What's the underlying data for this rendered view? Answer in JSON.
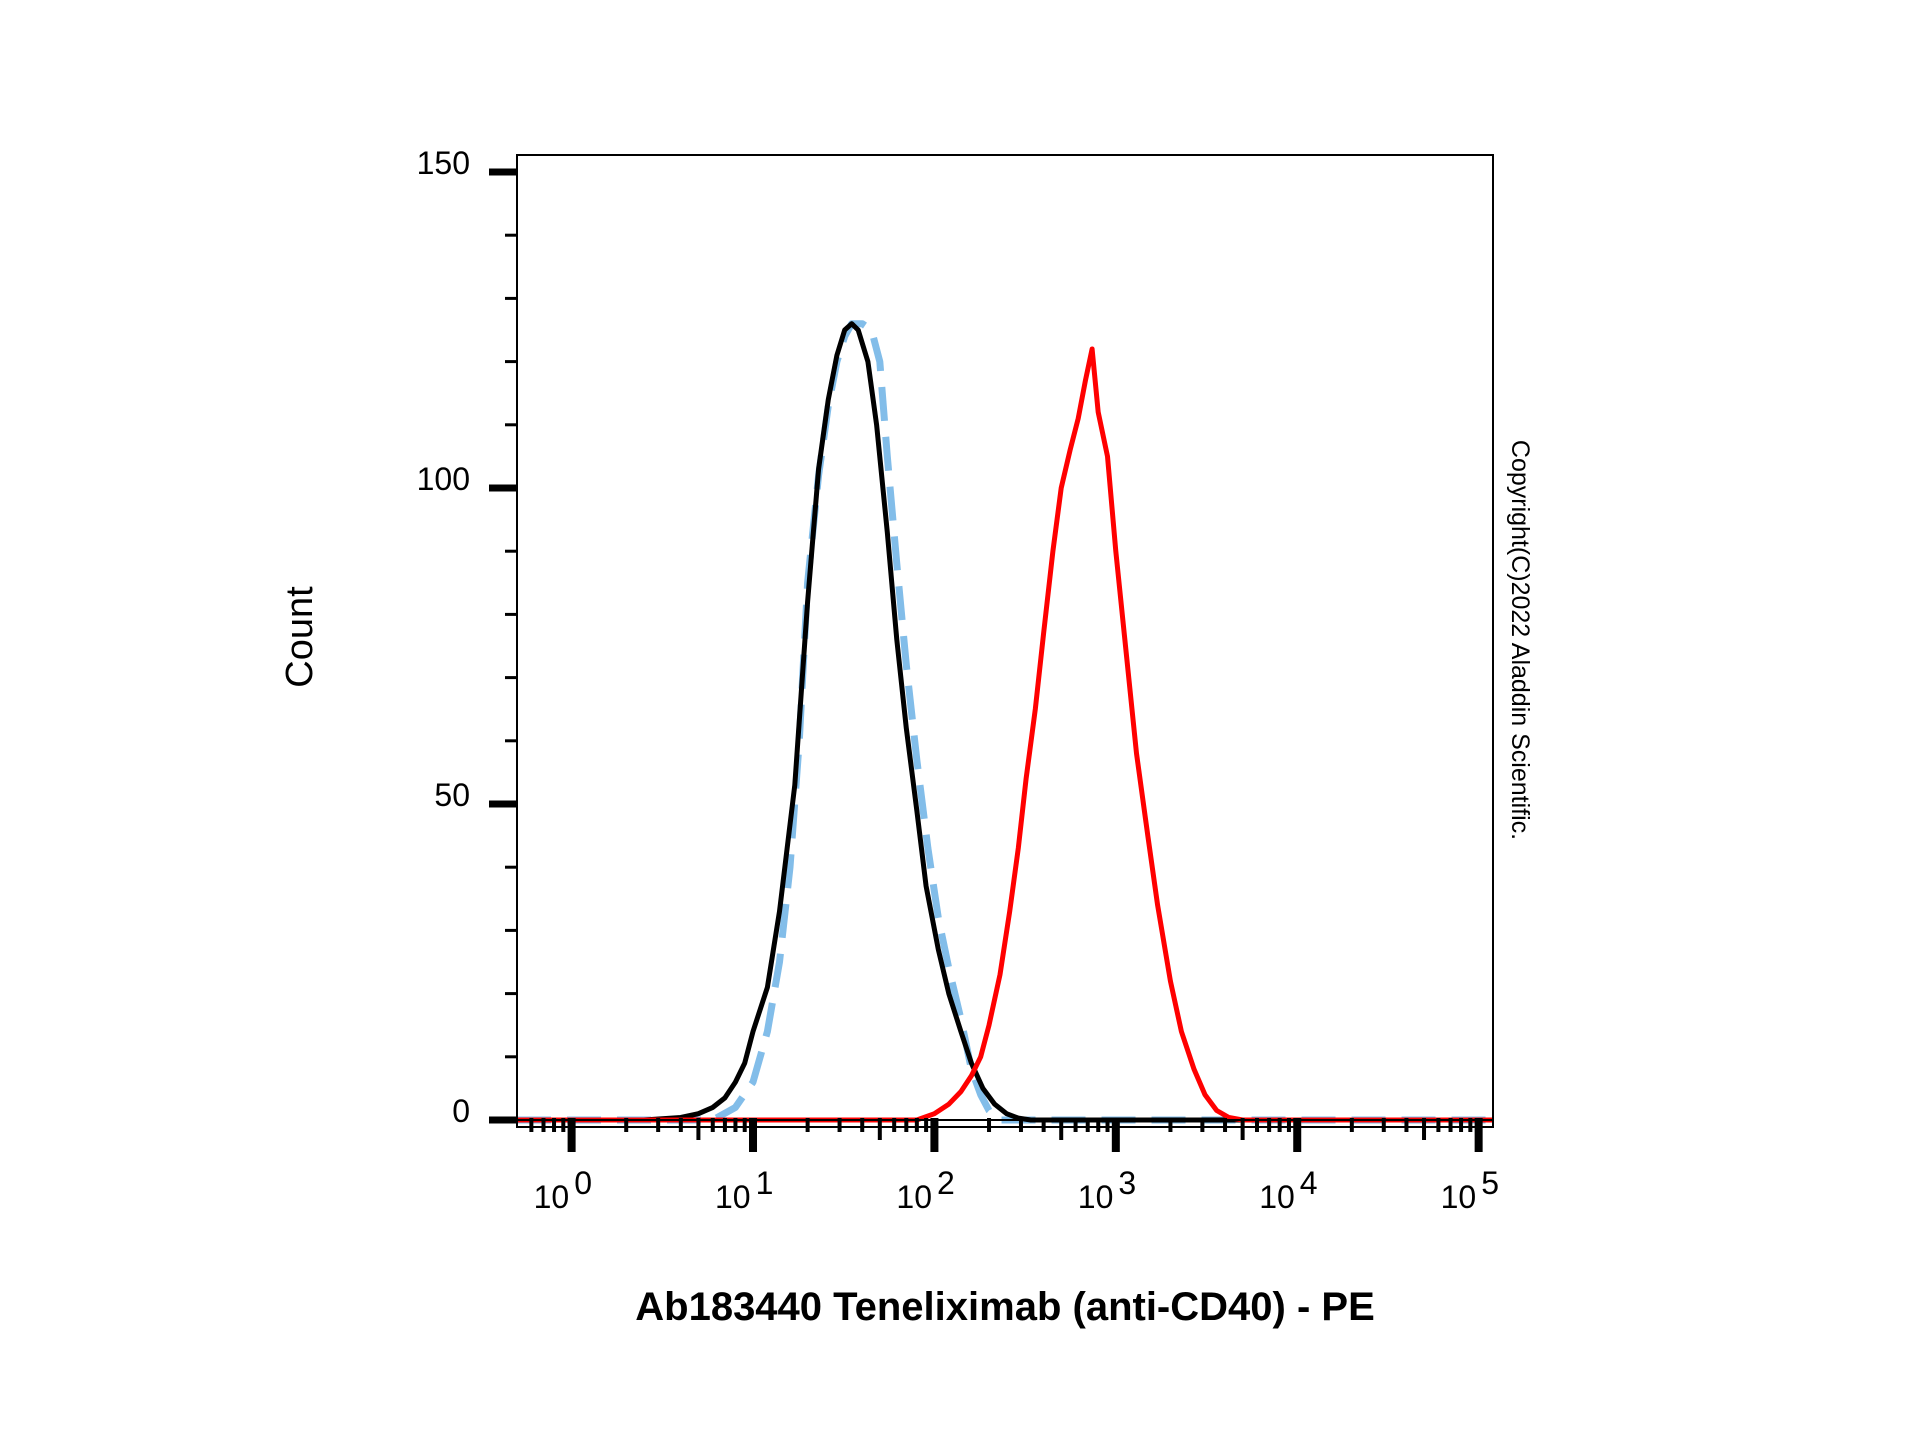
{
  "chart_data": {
    "type": "line",
    "title": "",
    "xlabel": "Ab183440 Teneliximab (anti-CD40) - PE",
    "ylabel": "Count",
    "x_scale": "log",
    "xlim": [
      0.5,
      120000
    ],
    "ylim": [
      0,
      150
    ],
    "grid": false,
    "legend": "none",
    "x_ticks": [
      {
        "value": 1,
        "base": "10",
        "exp": "0"
      },
      {
        "value": 10,
        "base": "10",
        "exp": "1"
      },
      {
        "value": 100,
        "base": "10",
        "exp": "2"
      },
      {
        "value": 1000,
        "base": "10",
        "exp": "3"
      },
      {
        "value": 10000,
        "base": "10",
        "exp": "4"
      },
      {
        "value": 100000,
        "base": "10",
        "exp": "5"
      }
    ],
    "y_ticks": [
      {
        "value": 0,
        "label": "0"
      },
      {
        "value": 50,
        "label": "50"
      },
      {
        "value": 100,
        "label": "100"
      },
      {
        "value": 150,
        "label": "150"
      }
    ],
    "series": [
      {
        "color": "#000000",
        "dash": false,
        "x": [
          0.5,
          2.5,
          4.0,
          5.0,
          6.0,
          7.0,
          8.0,
          9.0,
          10.0,
          12.0,
          14.0,
          17.0,
          20.0,
          23.0,
          26.0,
          29.0,
          32.0,
          35.0,
          38.0,
          43.0,
          48.0,
          55.0,
          62.0,
          70.0,
          80.0,
          90.0,
          105.0,
          120.0,
          140.0,
          160.0,
          185.0,
          215.0,
          250.0,
          290.0,
          340.0,
          120000
        ],
        "y": [
          0,
          0,
          0.4,
          1,
          2,
          3.5,
          6,
          9,
          14,
          21,
          33,
          53,
          82,
          103,
          114,
          121,
          125,
          126,
          125,
          120,
          110,
          93,
          76,
          62,
          49,
          37,
          27,
          20,
          14,
          9,
          5,
          2.5,
          1,
          0.3,
          0,
          0
        ]
      },
      {
        "color": "#82bde9",
        "dash": true,
        "x": [
          0.5,
          6.0,
          8.0,
          10.0,
          12.0,
          14.0,
          16.0,
          18.0,
          20.0,
          23.0,
          26.0,
          29.0,
          32.0,
          35.0,
          40.0,
          45.0,
          50.0,
          55.0,
          62.0,
          70.0,
          80.0,
          92.0,
          105.0,
          120.0,
          140.0,
          160.0,
          180.0,
          200.0,
          230.0,
          120000
        ],
        "y": [
          0,
          0,
          2,
          6,
          14,
          25,
          40,
          60,
          85,
          102,
          113,
          120,
          124,
          126,
          126,
          125,
          120,
          105,
          88,
          72,
          57,
          43,
          32,
          24,
          16,
          8,
          4,
          1.5,
          0,
          0
        ]
      },
      {
        "color": "#ff0000",
        "dash": false,
        "x": [
          0.5,
          80.0,
          100.0,
          120.0,
          140.0,
          160.0,
          180.0,
          200.0,
          230.0,
          260.0,
          290.0,
          320.0,
          360.0,
          400.0,
          450.0,
          500.0,
          560.0,
          620.0,
          680.0,
          740.0,
          800.0,
          900.0,
          1000.0,
          1150.0,
          1300.0,
          1500.0,
          1700.0,
          2000.0,
          2300.0,
          2700.0,
          3100.0,
          3600.0,
          4200.0,
          5000.0,
          120000
        ],
        "y": [
          0,
          0,
          1,
          2.5,
          4.5,
          7,
          10,
          15,
          23,
          33,
          43,
          54,
          65,
          77,
          90,
          100,
          106,
          111,
          117,
          122,
          112,
          105,
          90,
          73,
          58,
          45,
          34,
          22,
          14,
          8,
          4,
          1.5,
          0.4,
          0,
          0
        ]
      }
    ],
    "annotations": [
      "Copyright(C)2022 Aladdin Scientific."
    ]
  }
}
